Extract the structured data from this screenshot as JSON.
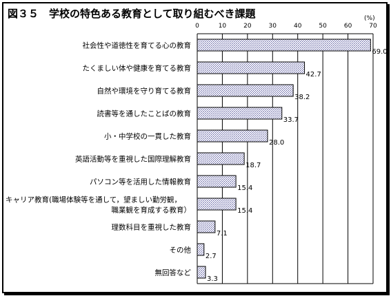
{
  "chart_data": {
    "type": "bar",
    "orientation": "horizontal",
    "title": "図３５　学校の特色ある教育として取り組むべき課題",
    "unit": "(%)",
    "xlim": [
      0,
      70
    ],
    "ticks": [
      0,
      10,
      20,
      30,
      40,
      50,
      60,
      70
    ],
    "grid": true,
    "categories": [
      [
        "社会性や道徳性を育てる心の教育"
      ],
      [
        "たくましい体や健康を育てる教育"
      ],
      [
        "自然や環境を守り育てる教育"
      ],
      [
        "読書等を通したことばの教育"
      ],
      [
        "小・中学校の一貫した教育"
      ],
      [
        "英語活動等を重視した国際理解教育"
      ],
      [
        "パソコン等を活用した情報教育"
      ],
      [
        "キャリア教育(職場体験等を通して，望ましい勤労観，",
        "職業観を育成する教育）"
      ],
      [
        "理数科目を重視した教育"
      ],
      [
        "その他"
      ],
      [
        "無回答など"
      ]
    ],
    "values": [
      69.0,
      42.7,
      38.2,
      33.7,
      28.0,
      18.7,
      15.4,
      15.4,
      7.1,
      2.7,
      3.3
    ],
    "value_labels": [
      "69.0",
      "42.7",
      "38.2",
      "33.7",
      "28.0",
      "18.7",
      "15.4",
      "15.4",
      "7.1",
      "2.7",
      "3.3"
    ]
  }
}
